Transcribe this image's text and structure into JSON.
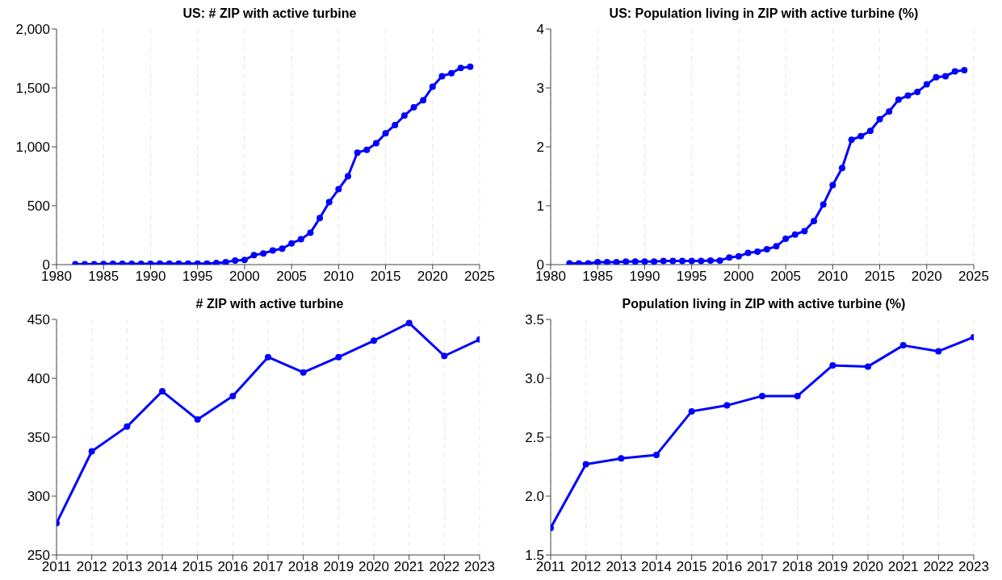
{
  "chart_data": [
    {
      "type": "line",
      "title": "US: # ZIP with active turbine",
      "x": [
        1982,
        1983,
        1984,
        1985,
        1986,
        1987,
        1988,
        1989,
        1990,
        1991,
        1992,
        1993,
        1994,
        1995,
        1996,
        1997,
        1998,
        1999,
        2000,
        2001,
        2002,
        2003,
        2004,
        2005,
        2006,
        2007,
        2008,
        2009,
        2010,
        2011,
        2012,
        2013,
        2014,
        2015,
        2016,
        2017,
        2018,
        2019,
        2020,
        2021,
        2022,
        2023,
        2024
      ],
      "series": [
        {
          "color": "#0000ff",
          "values": [
            3,
            3,
            4,
            5,
            6,
            6,
            7,
            7,
            7,
            8,
            8,
            8,
            8,
            8,
            9,
            14,
            20,
            35,
            40,
            80,
            95,
            120,
            135,
            180,
            215,
            270,
            395,
            530,
            640,
            750,
            950,
            975,
            1030,
            1115,
            1185,
            1265,
            1335,
            1395,
            1510,
            1600,
            1625,
            1670,
            1680
          ]
        }
      ],
      "xlim": [
        1980,
        2025
      ],
      "xticks": [
        1980,
        1985,
        1990,
        1995,
        2000,
        2005,
        2010,
        2015,
        2020,
        2025
      ],
      "ylim": [
        0,
        2000
      ],
      "yticks": [
        0,
        500,
        {
          "value": 1000,
          "label": "1,000"
        },
        {
          "value": 1500,
          "label": "1,500"
        },
        {
          "value": 2000,
          "label": "2,000"
        }
      ],
      "grid": "x",
      "marker": "circle",
      "line_style": "solid"
    },
    {
      "type": "line",
      "title": "US: Population living in ZIP with active turbine (%)",
      "x": [
        1982,
        1983,
        1984,
        1985,
        1986,
        1987,
        1988,
        1989,
        1990,
        1991,
        1992,
        1993,
        1994,
        1995,
        1996,
        1997,
        1998,
        1999,
        2000,
        2001,
        2002,
        2003,
        2004,
        2005,
        2006,
        2007,
        2008,
        2009,
        2010,
        2011,
        2012,
        2013,
        2014,
        2015,
        2016,
        2017,
        2018,
        2019,
        2020,
        2021,
        2022,
        2023,
        2024
      ],
      "series": [
        {
          "color": "#0000ff",
          "values": [
            0.02,
            0.02,
            0.02,
            0.04,
            0.04,
            0.04,
            0.05,
            0.05,
            0.05,
            0.05,
            0.06,
            0.06,
            0.06,
            0.06,
            0.06,
            0.07,
            0.07,
            0.12,
            0.14,
            0.2,
            0.22,
            0.26,
            0.31,
            0.44,
            0.51,
            0.57,
            0.74,
            1.02,
            1.35,
            1.64,
            2.12,
            2.18,
            2.27,
            2.47,
            2.6,
            2.8,
            2.87,
            2.93,
            3.06,
            3.18,
            3.2,
            3.28,
            3.3
          ]
        }
      ],
      "xlim": [
        1980,
        2025
      ],
      "xticks": [
        1980,
        1985,
        1990,
        1995,
        2000,
        2005,
        2010,
        2015,
        2020,
        2025
      ],
      "ylim": [
        0,
        4
      ],
      "yticks": [
        0,
        1,
        2,
        3,
        4
      ],
      "grid": "x",
      "marker": "circle",
      "line_style": "solid"
    },
    {
      "type": "line",
      "title": "# ZIP with active turbine",
      "x": [
        2011,
        2012,
        2013,
        2014,
        2015,
        2016,
        2017,
        2018,
        2019,
        2020,
        2021,
        2022,
        2023
      ],
      "series": [
        {
          "color": "#0000ff",
          "values": [
            277,
            338,
            359,
            389,
            365,
            385,
            418,
            405,
            418,
            432,
            447,
            419,
            433
          ]
        }
      ],
      "xlim": [
        2011,
        2023
      ],
      "xticks": [
        2011,
        2012,
        2013,
        2014,
        2015,
        2016,
        2017,
        2018,
        2019,
        2020,
        2021,
        2022,
        2023
      ],
      "ylim": [
        250,
        450
      ],
      "yticks": [
        250,
        300,
        350,
        400,
        450
      ],
      "grid": "x",
      "marker": "circle",
      "line_style": "solid"
    },
    {
      "type": "line",
      "title": "Population living in ZIP with active turbine (%)",
      "x": [
        2011,
        2012,
        2013,
        2014,
        2015,
        2016,
        2017,
        2018,
        2019,
        2020,
        2021,
        2022,
        2023
      ],
      "series": [
        {
          "color": "#0000ff",
          "values": [
            1.73,
            2.27,
            2.32,
            2.35,
            2.72,
            2.77,
            2.85,
            2.85,
            3.11,
            3.1,
            3.28,
            3.23,
            3.35
          ]
        }
      ],
      "xlim": [
        2011,
        2023
      ],
      "xticks": [
        2011,
        2012,
        2013,
        2014,
        2015,
        2016,
        2017,
        2018,
        2019,
        2020,
        2021,
        2022,
        2023
      ],
      "ylim": [
        1.5,
        3.5
      ],
      "yticks": [
        1.5,
        {
          "value": 2,
          "label": "2.0"
        },
        2.5,
        {
          "value": 3,
          "label": "3.0"
        },
        3.5
      ],
      "grid": "x",
      "marker": "circle",
      "line_style": "solid"
    }
  ]
}
